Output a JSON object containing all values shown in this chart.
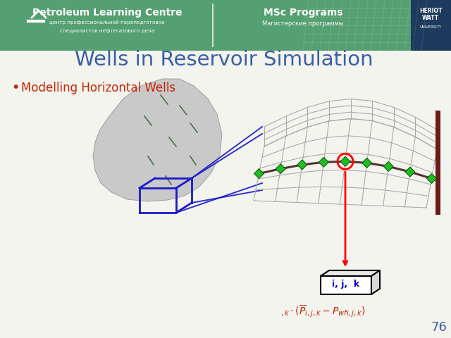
{
  "title": "Wells in Reservoir Simulation",
  "bullet_text": "Modelling Horizontal Wells",
  "page_number": "76",
  "header_bg_color_top": "#5aaa78",
  "header_bg_color_bot": "#3a8a58",
  "header_text1": "Petroleum Learning Centre",
  "header_text2": "MSc Programs",
  "header_sub1a": "центр профессиональной переподготовки",
  "header_sub1b": "специалистов нефтегазового дела",
  "header_sub2": "Магистерские программы",
  "title_color": "#3a5fa8",
  "bullet_color": "#cc2200",
  "slide_bg": "#f4f4ef",
  "formula_color": "#cc2200",
  "box_label": "i, j,  k",
  "page_num_color": "#3a5fa8",
  "blue_line_color": "#1a1acc",
  "grid_color": "#aaaaaa",
  "dark_red_bar": "#6b1a1a",
  "well_green": "#22bb22",
  "well_line": "#553333"
}
